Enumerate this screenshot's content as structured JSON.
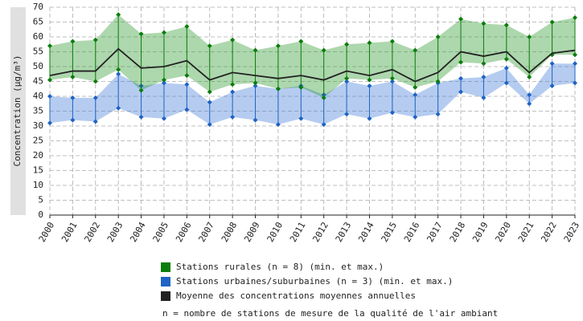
{
  "chart_data": {
    "type": "range-band",
    "y_label": "Concentration (µg/m³)",
    "categories": [
      "2000",
      "2001",
      "2002",
      "2003",
      "2004",
      "2005",
      "2006",
      "2007",
      "2008",
      "2009",
      "2010",
      "2011",
      "2012",
      "2013",
      "2014",
      "2015",
      "2016",
      "2017",
      "2018",
      "2019",
      "2020",
      "2021",
      "2022",
      "2023"
    ],
    "series": [
      {
        "name": "Stations rurales (n = 8) (min. et max.)",
        "color": "#0b7d0b",
        "fill": "rgba(40,150,40,0.38)",
        "min": [
          45.5,
          46.5,
          45,
          49,
          42,
          45.5,
          47,
          41.5,
          44,
          44.5,
          42.5,
          43,
          39.5,
          46,
          45.5,
          46,
          43,
          45,
          51.5,
          51,
          52.5,
          46.5,
          54,
          54
        ],
        "max": [
          57,
          58.5,
          59,
          67.5,
          61,
          61.5,
          63.5,
          57,
          59,
          55.5,
          57,
          58.5,
          55.5,
          57.5,
          58,
          58.5,
          55.5,
          60,
          66,
          64.5,
          64,
          60,
          65,
          66.5
        ]
      },
      {
        "name": "Stations urbaines/suburbaines (n = 3) (min. et max.)",
        "color": "#1f63c4",
        "fill": "rgba(60,120,215,0.38)",
        "min": [
          31,
          32,
          31.5,
          36,
          33,
          32.5,
          35.5,
          30.5,
          33,
          32,
          30.5,
          32.5,
          30.5,
          34,
          32.5,
          34.5,
          33,
          34,
          41.5,
          39.5,
          44.5,
          37.5,
          43.5,
          44.5
        ],
        "max": [
          40,
          39.5,
          39.5,
          47.5,
          43.5,
          44.5,
          44,
          38,
          41.5,
          43.5,
          42.5,
          43.5,
          40.5,
          45,
          43.5,
          45,
          40.5,
          44.5,
          46,
          46.5,
          49.5,
          40.5,
          51,
          51
        ]
      },
      {
        "name": "Moyenne des concentrations moyennes annuelles",
        "color": "#222222",
        "values": [
          47,
          48.5,
          48.5,
          56,
          49.5,
          50,
          52,
          45.5,
          48,
          47,
          46,
          47,
          45.5,
          48.5,
          47,
          49,
          45,
          48,
          55,
          53.5,
          55,
          48,
          54.5,
          55.5
        ]
      }
    ],
    "note": "n = nombre de stations de mesure de la qualité de l'air ambiant",
    "ylim": [
      0,
      70
    ],
    "yticks": [
      0,
      5,
      10,
      15,
      20,
      25,
      30,
      35,
      40,
      45,
      50,
      55,
      60,
      65,
      70
    ],
    "grid": true
  }
}
